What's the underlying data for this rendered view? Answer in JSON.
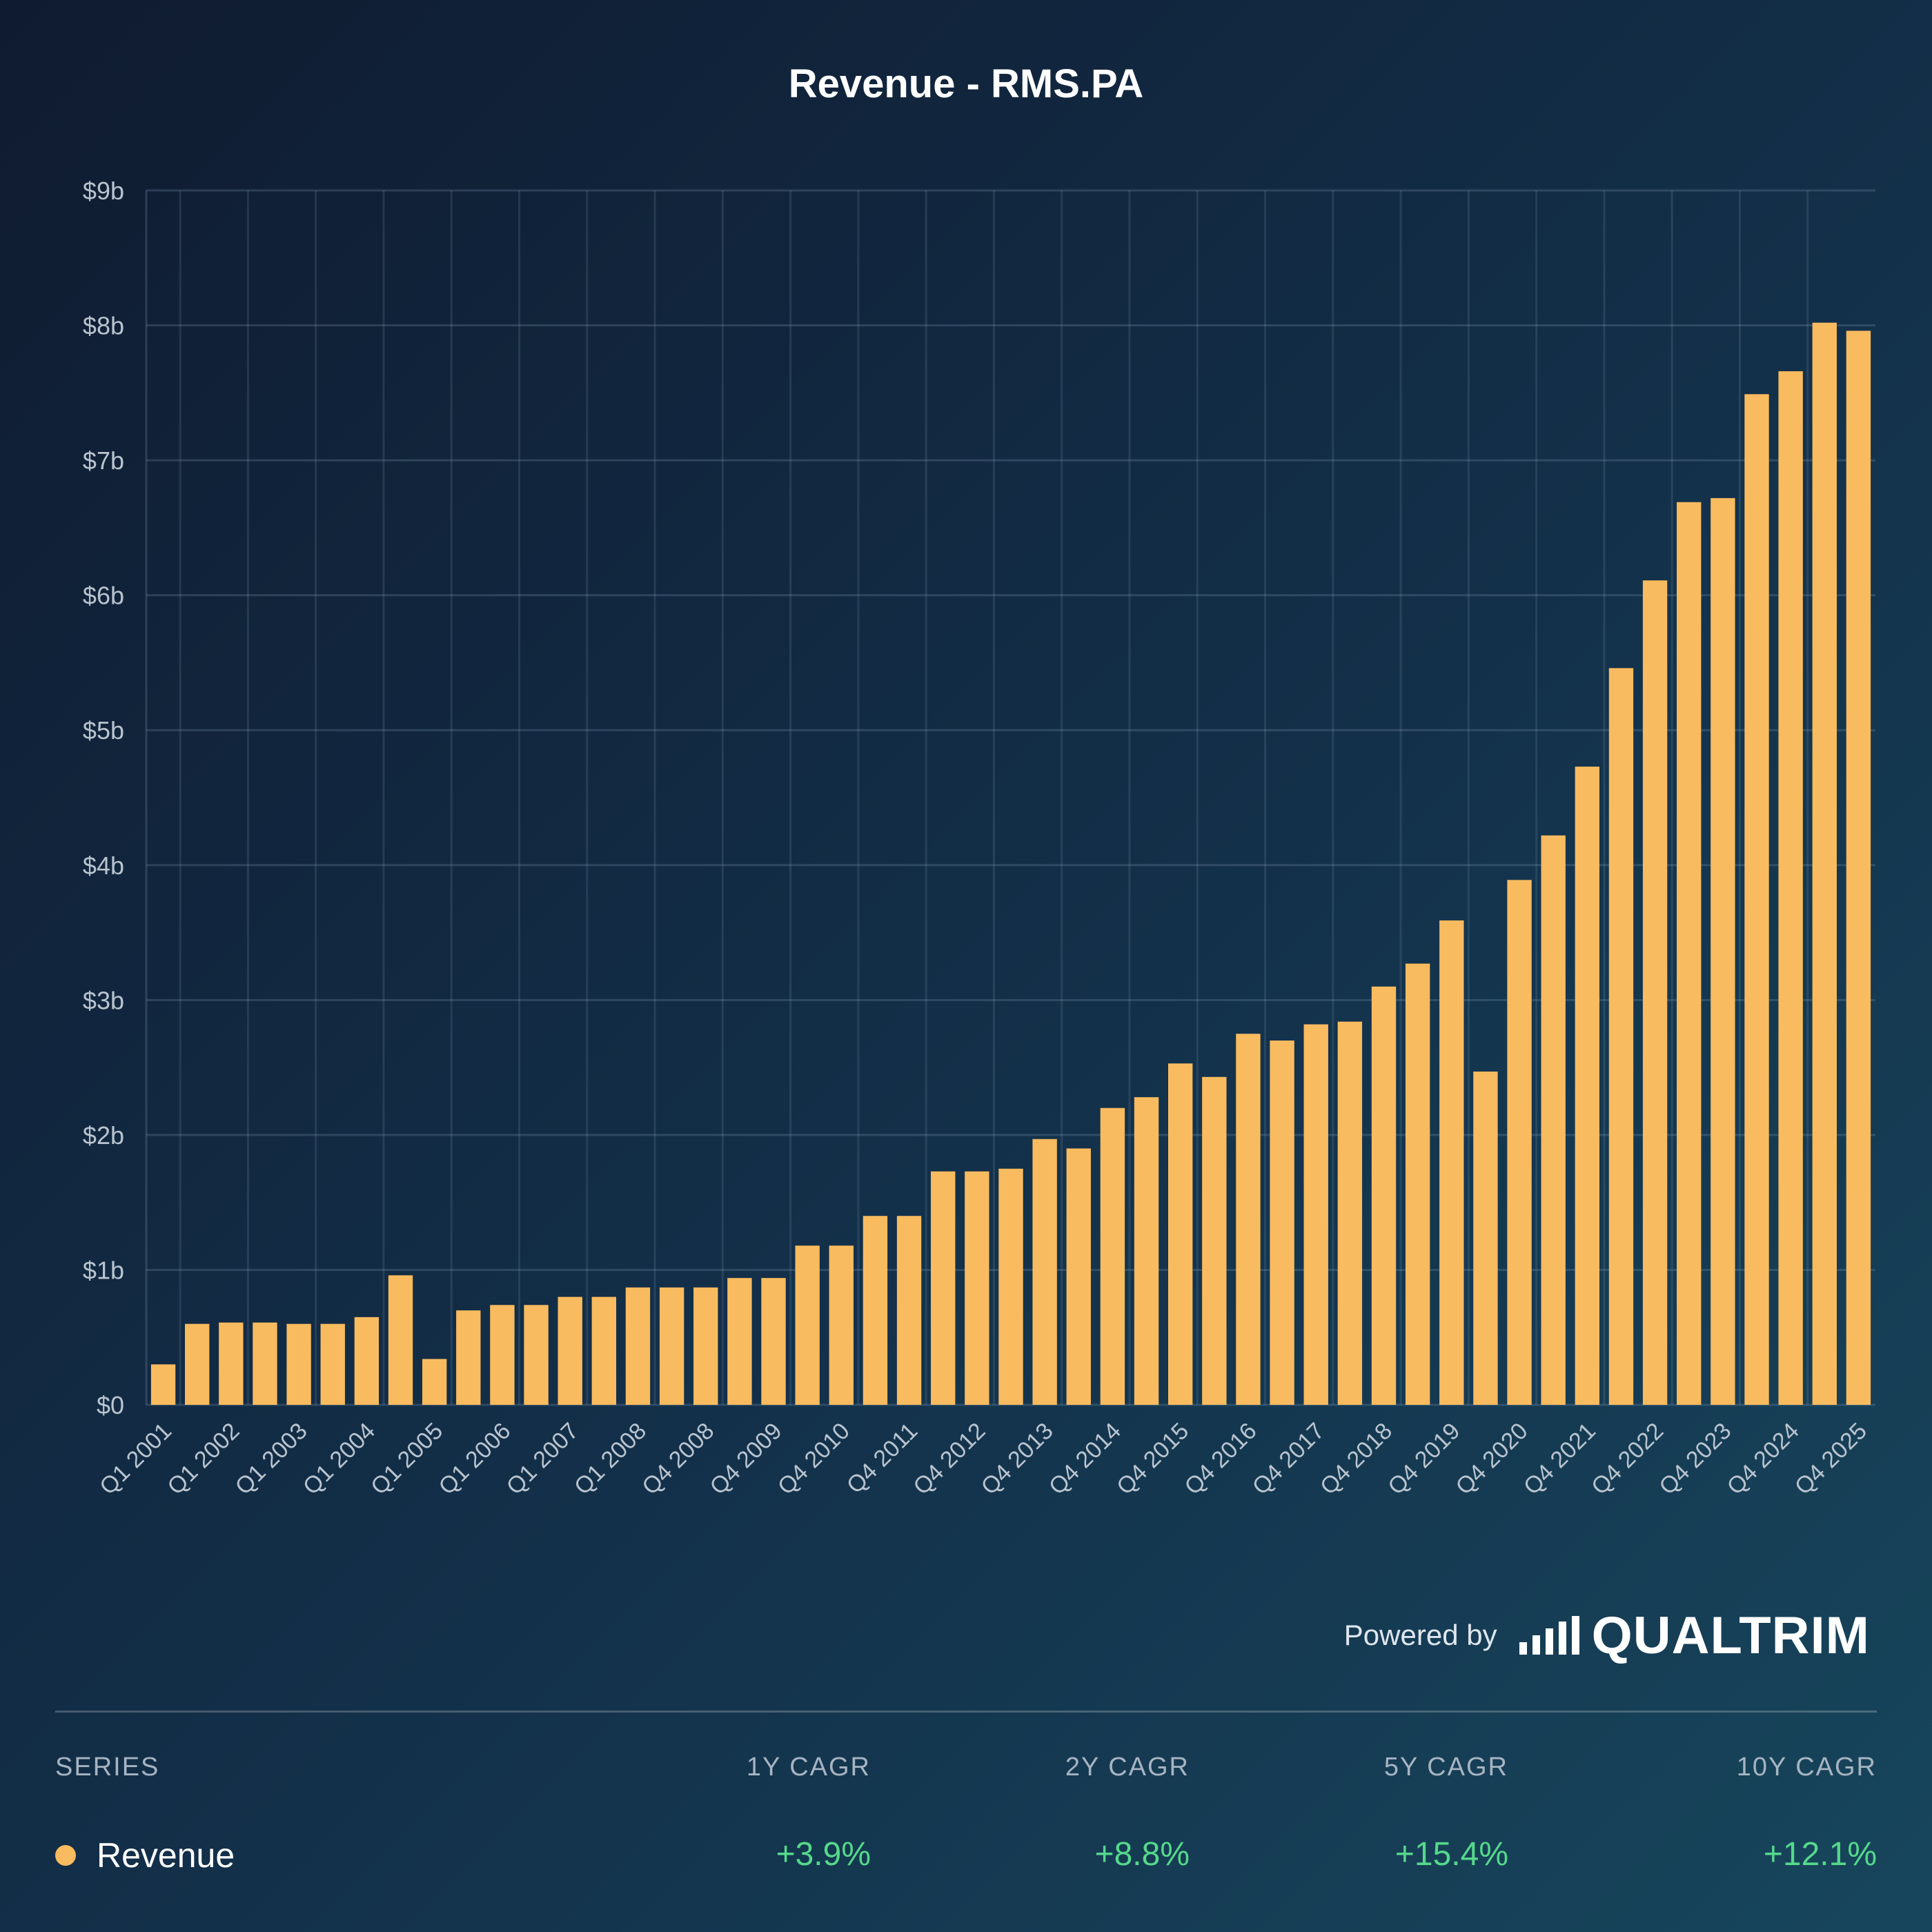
{
  "title": "Revenue - RMS.PA",
  "chart_data": {
    "type": "bar",
    "title": "Revenue - RMS.PA",
    "xlabel": "",
    "ylabel": "",
    "ylim": [
      0,
      9
    ],
    "y_unit": "$b",
    "y_ticks": [
      "$0",
      "$1b",
      "$2b",
      "$3b",
      "$4b",
      "$5b",
      "$6b",
      "$7b",
      "$8b",
      "$9b"
    ],
    "grid": true,
    "bar_color": "#f9bb5f",
    "x_tick_labels": [
      "Q1 2001",
      "Q1 2002",
      "Q1 2003",
      "Q1 2004",
      "Q1 2005",
      "Q1 2006",
      "Q1 2007",
      "Q1 2008",
      "Q4 2008",
      "Q4 2009",
      "Q4 2010",
      "Q4 2011",
      "Q4 2012",
      "Q4 2013",
      "Q4 2014",
      "Q4 2015",
      "Q4 2016",
      "Q4 2017",
      "Q4 2018",
      "Q4 2019",
      "Q4 2020",
      "Q4 2021",
      "Q4 2022",
      "Q4 2023",
      "Q4 2024",
      "Q4 2025"
    ],
    "series": [
      {
        "name": "Revenue",
        "values": [
          0.3,
          0.6,
          0.61,
          0.61,
          0.6,
          0.6,
          0.65,
          0.96,
          0.34,
          0.7,
          0.74,
          0.74,
          0.8,
          0.8,
          0.87,
          0.87,
          0.87,
          0.94,
          0.94,
          1.18,
          1.18,
          1.4,
          1.4,
          1.73,
          1.73,
          1.75,
          1.97,
          1.9,
          2.2,
          2.28,
          2.53,
          2.43,
          2.75,
          2.7,
          2.82,
          2.84,
          3.1,
          3.27,
          3.59,
          2.47,
          3.89,
          4.22,
          4.73,
          5.46,
          6.11,
          6.69,
          6.72,
          7.49,
          7.66,
          8.02,
          7.96
        ]
      }
    ]
  },
  "footer": {
    "powered_label": "Powered by",
    "logo_text": "QUALTRIM"
  },
  "table": {
    "headers": [
      "SERIES",
      "1Y CAGR",
      "2Y CAGR",
      "5Y CAGR",
      "10Y CAGR"
    ],
    "rows": [
      {
        "series": "Revenue",
        "color": "#f9bb5f",
        "values": [
          "+3.9%",
          "+8.8%",
          "+15.4%",
          "+12.1%"
        ]
      }
    ]
  }
}
